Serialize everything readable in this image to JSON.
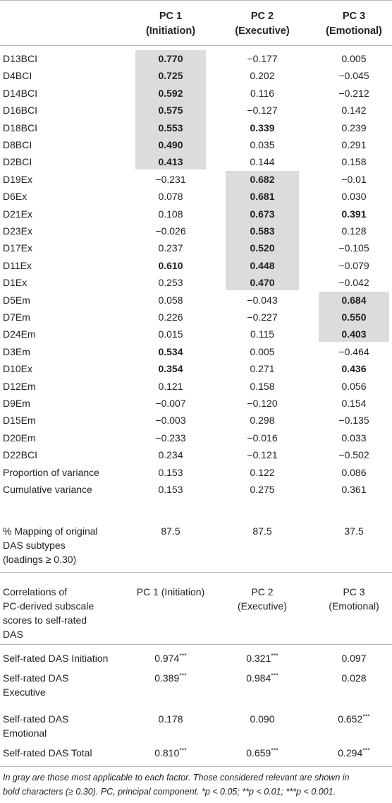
{
  "table": {
    "columns": [
      {
        "line1": "PC 1",
        "line2": "(Initiation)"
      },
      {
        "line1": "PC 2",
        "line2": "(Executive)"
      },
      {
        "line1": "PC 3",
        "line2": "(Emotional)"
      }
    ],
    "rows": [
      {
        "label": "D13BCI",
        "values": [
          "0.770",
          "−0.177",
          "0.005"
        ],
        "bold": [
          true,
          false,
          false
        ],
        "shade": [
          true,
          false,
          false
        ]
      },
      {
        "label": "D4BCI",
        "values": [
          "0.725",
          "0.202",
          "−0.045"
        ],
        "bold": [
          true,
          false,
          false
        ],
        "shade": [
          true,
          false,
          false
        ]
      },
      {
        "label": "D14BCI",
        "values": [
          "0.592",
          "0.116",
          "−0.212"
        ],
        "bold": [
          true,
          false,
          false
        ],
        "shade": [
          true,
          false,
          false
        ]
      },
      {
        "label": "D16BCI",
        "values": [
          "0.575",
          "−0.127",
          "0.142"
        ],
        "bold": [
          true,
          false,
          false
        ],
        "shade": [
          true,
          false,
          false
        ]
      },
      {
        "label": "D18BCI",
        "values": [
          "0.553",
          "0.339",
          "0.239"
        ],
        "bold": [
          true,
          true,
          false
        ],
        "shade": [
          true,
          false,
          false
        ]
      },
      {
        "label": "D8BCI",
        "values": [
          "0.490",
          "0.035",
          "0.291"
        ],
        "bold": [
          true,
          false,
          false
        ],
        "shade": [
          true,
          false,
          false
        ]
      },
      {
        "label": "D2BCI",
        "values": [
          "0.413",
          "0.144",
          "0.158"
        ],
        "bold": [
          true,
          false,
          false
        ],
        "shade": [
          true,
          false,
          false
        ]
      },
      {
        "label": "D19Ex",
        "values": [
          "−0.231",
          "0.682",
          "−0.01"
        ],
        "bold": [
          false,
          true,
          false
        ],
        "shade": [
          false,
          true,
          false
        ]
      },
      {
        "label": "D6Ex",
        "values": [
          "0.078",
          "0.681",
          "0.030"
        ],
        "bold": [
          false,
          true,
          false
        ],
        "shade": [
          false,
          true,
          false
        ]
      },
      {
        "label": "D21Ex",
        "values": [
          "0.108",
          "0.673",
          "0.391"
        ],
        "bold": [
          false,
          true,
          true
        ],
        "shade": [
          false,
          true,
          false
        ]
      },
      {
        "label": "D23Ex",
        "values": [
          "−0.026",
          "0.583",
          "0.128"
        ],
        "bold": [
          false,
          true,
          false
        ],
        "shade": [
          false,
          true,
          false
        ]
      },
      {
        "label": "D17Ex",
        "values": [
          "0.237",
          "0.520",
          "−0.105"
        ],
        "bold": [
          false,
          true,
          false
        ],
        "shade": [
          false,
          true,
          false
        ]
      },
      {
        "label": "D11Ex",
        "values": [
          "0.610",
          "0.448",
          "−0.079"
        ],
        "bold": [
          true,
          true,
          false
        ],
        "shade": [
          false,
          true,
          false
        ]
      },
      {
        "label": "D1Ex",
        "values": [
          "0.253",
          "0.470",
          "−0.042"
        ],
        "bold": [
          false,
          true,
          false
        ],
        "shade": [
          false,
          true,
          false
        ]
      },
      {
        "label": "D5Em",
        "values": [
          "0.058",
          "−0.043",
          "0.684"
        ],
        "bold": [
          false,
          false,
          true
        ],
        "shade": [
          false,
          false,
          true
        ]
      },
      {
        "label": "D7Em",
        "values": [
          "0.226",
          "−0.227",
          "0.550"
        ],
        "bold": [
          false,
          false,
          true
        ],
        "shade": [
          false,
          false,
          true
        ]
      },
      {
        "label": "D24Em",
        "values": [
          "0.015",
          "0.115",
          "0.403"
        ],
        "bold": [
          false,
          false,
          true
        ],
        "shade": [
          false,
          false,
          true
        ]
      },
      {
        "label": "D3Em",
        "values": [
          "0.534",
          "0.005",
          "−0.464"
        ],
        "bold": [
          true,
          false,
          false
        ],
        "shade": [
          false,
          false,
          false
        ]
      },
      {
        "label": "D10Ex",
        "values": [
          "0.354",
          "0.271",
          "0.436"
        ],
        "bold": [
          true,
          false,
          true
        ],
        "shade": [
          false,
          false,
          false
        ]
      },
      {
        "label": "D12Em",
        "values": [
          "0.121",
          "0.158",
          "0.056"
        ],
        "bold": [
          false,
          false,
          false
        ],
        "shade": [
          false,
          false,
          false
        ]
      },
      {
        "label": "D9Em",
        "values": [
          "−0.007",
          "−0.120",
          "0.154"
        ],
        "bold": [
          false,
          false,
          false
        ],
        "shade": [
          false,
          false,
          false
        ]
      },
      {
        "label": "D15Em",
        "values": [
          "−0.003",
          "0.298",
          "−0.135"
        ],
        "bold": [
          false,
          false,
          false
        ],
        "shade": [
          false,
          false,
          false
        ]
      },
      {
        "label": "D20Em",
        "values": [
          "−0.233",
          "−0.016",
          "0.033"
        ],
        "bold": [
          false,
          false,
          false
        ],
        "shade": [
          false,
          false,
          false
        ]
      },
      {
        "label": "D22BCI",
        "values": [
          "0.234",
          "−0.121",
          "−0.502"
        ],
        "bold": [
          false,
          false,
          false
        ],
        "shade": [
          false,
          false,
          false
        ]
      },
      {
        "label": "Proportion of variance",
        "values": [
          "0.153",
          "0.122",
          "0.086"
        ],
        "bold": [
          false,
          false,
          false
        ],
        "shade": [
          false,
          false,
          false
        ]
      },
      {
        "label": "Cumulative variance",
        "values": [
          "0.153",
          "0.275",
          "0.361"
        ],
        "bold": [
          false,
          false,
          false
        ],
        "shade": [
          false,
          false,
          false
        ]
      }
    ],
    "mapping": {
      "label_lines": [
        "% Mapping of original",
        "DAS subtypes",
        "(loadings ≥ 0.30)"
      ],
      "values": [
        "87.5",
        "87.5",
        "37.5"
      ]
    },
    "correlations_header": {
      "label_lines": [
        "Correlations of",
        "PC-derived subscale",
        "scores to self-rated",
        "DAS"
      ],
      "c1_lines": [
        "PC 1 (Initiation)"
      ],
      "c2_lines": [
        "PC 2",
        "(Executive)"
      ],
      "c3_lines": [
        "PC 3",
        "(Emotional)"
      ]
    },
    "correlations": [
      {
        "label_lines": [
          "Self-rated DAS Initiation"
        ],
        "values": [
          "0.974",
          "0.321",
          "0.097"
        ],
        "stars": [
          "***",
          "***",
          ""
        ]
      },
      {
        "label_lines": [
          "Self-rated DAS",
          "Executive"
        ],
        "values": [
          "0.389",
          "0.984",
          "0.028"
        ],
        "stars": [
          "***",
          "***",
          ""
        ]
      },
      {
        "label_lines": [
          "Self-rated DAS",
          "Emotional"
        ],
        "values": [
          "0.178",
          "0.090",
          "0.652"
        ],
        "stars": [
          "",
          "",
          "***"
        ]
      },
      {
        "label_lines": [
          "Self-rated DAS Total"
        ],
        "values": [
          "0.810",
          "0.659",
          "0.294"
        ],
        "stars": [
          "***",
          "***",
          "***"
        ]
      }
    ]
  },
  "footnote": {
    "line1": "In gray are those most applicable to each factor. Those considered relevant are shown in",
    "line2": "bold characters (≥ 0.30). PC, principal component. *p < 0.05; **p < 0.01; ***p < 0.001."
  },
  "colors": {
    "shade": "#dcdcdc",
    "rule": "#b9b9b9",
    "text": "#222222"
  }
}
